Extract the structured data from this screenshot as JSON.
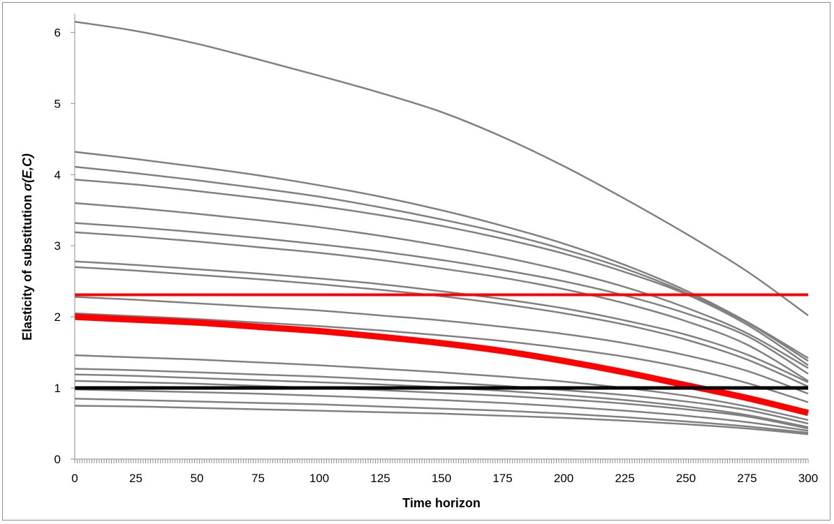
{
  "chart_data": {
    "type": "line",
    "title": "",
    "xlabel": "Time horizon",
    "ylabel_prefix": "Elasticity of substitution ",
    "ylabel_symbol": "σ(E,C)",
    "xlim": [
      0,
      300
    ],
    "ylim": [
      0,
      6.2
    ],
    "x_ticks": [
      0,
      25,
      50,
      75,
      100,
      125,
      150,
      175,
      200,
      225,
      250,
      275,
      300
    ],
    "y_ticks": [
      0,
      1,
      2,
      3,
      4,
      5,
      6
    ],
    "grid": false,
    "legend": "none",
    "colors": {
      "gray": "#808080",
      "red": "#ff0000",
      "black": "#000000"
    },
    "x": [
      0,
      25,
      50,
      75,
      100,
      125,
      150,
      175,
      200,
      225,
      250,
      275,
      300
    ],
    "series": [
      {
        "color": "gray",
        "values": [
          6.15,
          6.02,
          5.84,
          5.62,
          5.39,
          5.15,
          4.88,
          4.53,
          4.12,
          3.66,
          3.17,
          2.64,
          2.02
        ]
      },
      {
        "color": "gray",
        "values": [
          4.32,
          4.22,
          4.11,
          3.99,
          3.85,
          3.69,
          3.5,
          3.28,
          3.03,
          2.73,
          2.37,
          1.93,
          1.42
        ]
      },
      {
        "color": "gray",
        "values": [
          4.11,
          4.02,
          3.92,
          3.81,
          3.69,
          3.54,
          3.37,
          3.18,
          2.95,
          2.68,
          2.34,
          1.92,
          1.38
        ]
      },
      {
        "color": "gray",
        "values": [
          3.93,
          3.86,
          3.77,
          3.67,
          3.56,
          3.43,
          3.28,
          3.1,
          2.89,
          2.63,
          2.32,
          1.89,
          1.32
        ]
      },
      {
        "color": "gray",
        "values": [
          3.6,
          3.53,
          3.45,
          3.36,
          3.26,
          3.14,
          3.0,
          2.84,
          2.65,
          2.42,
          2.13,
          1.77,
          1.28
        ]
      },
      {
        "color": "gray",
        "values": [
          3.32,
          3.26,
          3.19,
          3.11,
          3.02,
          2.92,
          2.8,
          2.66,
          2.5,
          2.3,
          2.05,
          1.73,
          1.2
        ]
      },
      {
        "color": "gray",
        "values": [
          3.19,
          3.13,
          3.06,
          2.98,
          2.9,
          2.8,
          2.68,
          2.55,
          2.39,
          2.19,
          1.94,
          1.61,
          1.1
        ]
      },
      {
        "color": "gray",
        "values": [
          2.78,
          2.73,
          2.67,
          2.61,
          2.54,
          2.46,
          2.36,
          2.25,
          2.12,
          1.95,
          1.75,
          1.47,
          1.08
        ]
      },
      {
        "color": "gray",
        "values": [
          2.7,
          2.65,
          2.59,
          2.53,
          2.46,
          2.38,
          2.29,
          2.18,
          2.05,
          1.89,
          1.68,
          1.4,
          1.02
        ]
      },
      {
        "color": "gray",
        "values": [
          2.28,
          2.24,
          2.19,
          2.14,
          2.09,
          2.02,
          1.95,
          1.86,
          1.76,
          1.63,
          1.46,
          1.24,
          0.92
        ]
      },
      {
        "color": "gray",
        "values": [
          2.05,
          2.01,
          1.97,
          1.92,
          1.87,
          1.81,
          1.74,
          1.66,
          1.56,
          1.44,
          1.28,
          1.07,
          0.8
        ]
      },
      {
        "color": "gray",
        "values": [
          1.46,
          1.43,
          1.4,
          1.36,
          1.32,
          1.27,
          1.22,
          1.16,
          1.09,
          1.0,
          0.89,
          0.74,
          0.55
        ]
      },
      {
        "color": "gray",
        "values": [
          1.27,
          1.25,
          1.22,
          1.19,
          1.16,
          1.12,
          1.08,
          1.03,
          0.97,
          0.9,
          0.81,
          0.69,
          0.5
        ]
      },
      {
        "color": "gray",
        "values": [
          1.19,
          1.17,
          1.14,
          1.11,
          1.08,
          1.05,
          1.01,
          0.96,
          0.9,
          0.83,
          0.74,
          0.62,
          0.45
        ]
      },
      {
        "color": "gray",
        "values": [
          1.1,
          1.08,
          1.06,
          1.03,
          1.0,
          0.97,
          0.93,
          0.89,
          0.84,
          0.78,
          0.7,
          0.6,
          0.43
        ]
      },
      {
        "color": "gray",
        "values": [
          0.98,
          0.96,
          0.94,
          0.92,
          0.89,
          0.86,
          0.83,
          0.79,
          0.74,
          0.68,
          0.61,
          0.52,
          0.4
        ]
      },
      {
        "color": "gray",
        "values": [
          0.85,
          0.83,
          0.81,
          0.79,
          0.77,
          0.74,
          0.71,
          0.68,
          0.64,
          0.59,
          0.53,
          0.46,
          0.37
        ]
      },
      {
        "color": "gray",
        "values": [
          0.75,
          0.74,
          0.72,
          0.7,
          0.68,
          0.66,
          0.64,
          0.61,
          0.58,
          0.54,
          0.49,
          0.43,
          0.35
        ]
      },
      {
        "color": "red",
        "width": 4,
        "values": [
          2.31,
          2.31,
          2.31,
          2.31,
          2.31,
          2.31,
          2.31,
          2.31,
          2.31,
          2.31,
          2.31,
          2.31,
          2.31
        ]
      },
      {
        "color": "red",
        "width": 9,
        "values": [
          2.0,
          1.96,
          1.92,
          1.86,
          1.8,
          1.72,
          1.63,
          1.52,
          1.38,
          1.22,
          1.04,
          0.86,
          0.65
        ]
      },
      {
        "color": "black",
        "width": 5,
        "values": [
          1.0,
          1.0,
          1.0,
          1.0,
          1.0,
          1.0,
          1.0,
          1.0,
          1.0,
          1.0,
          1.0,
          1.0,
          1.0
        ]
      }
    ]
  }
}
